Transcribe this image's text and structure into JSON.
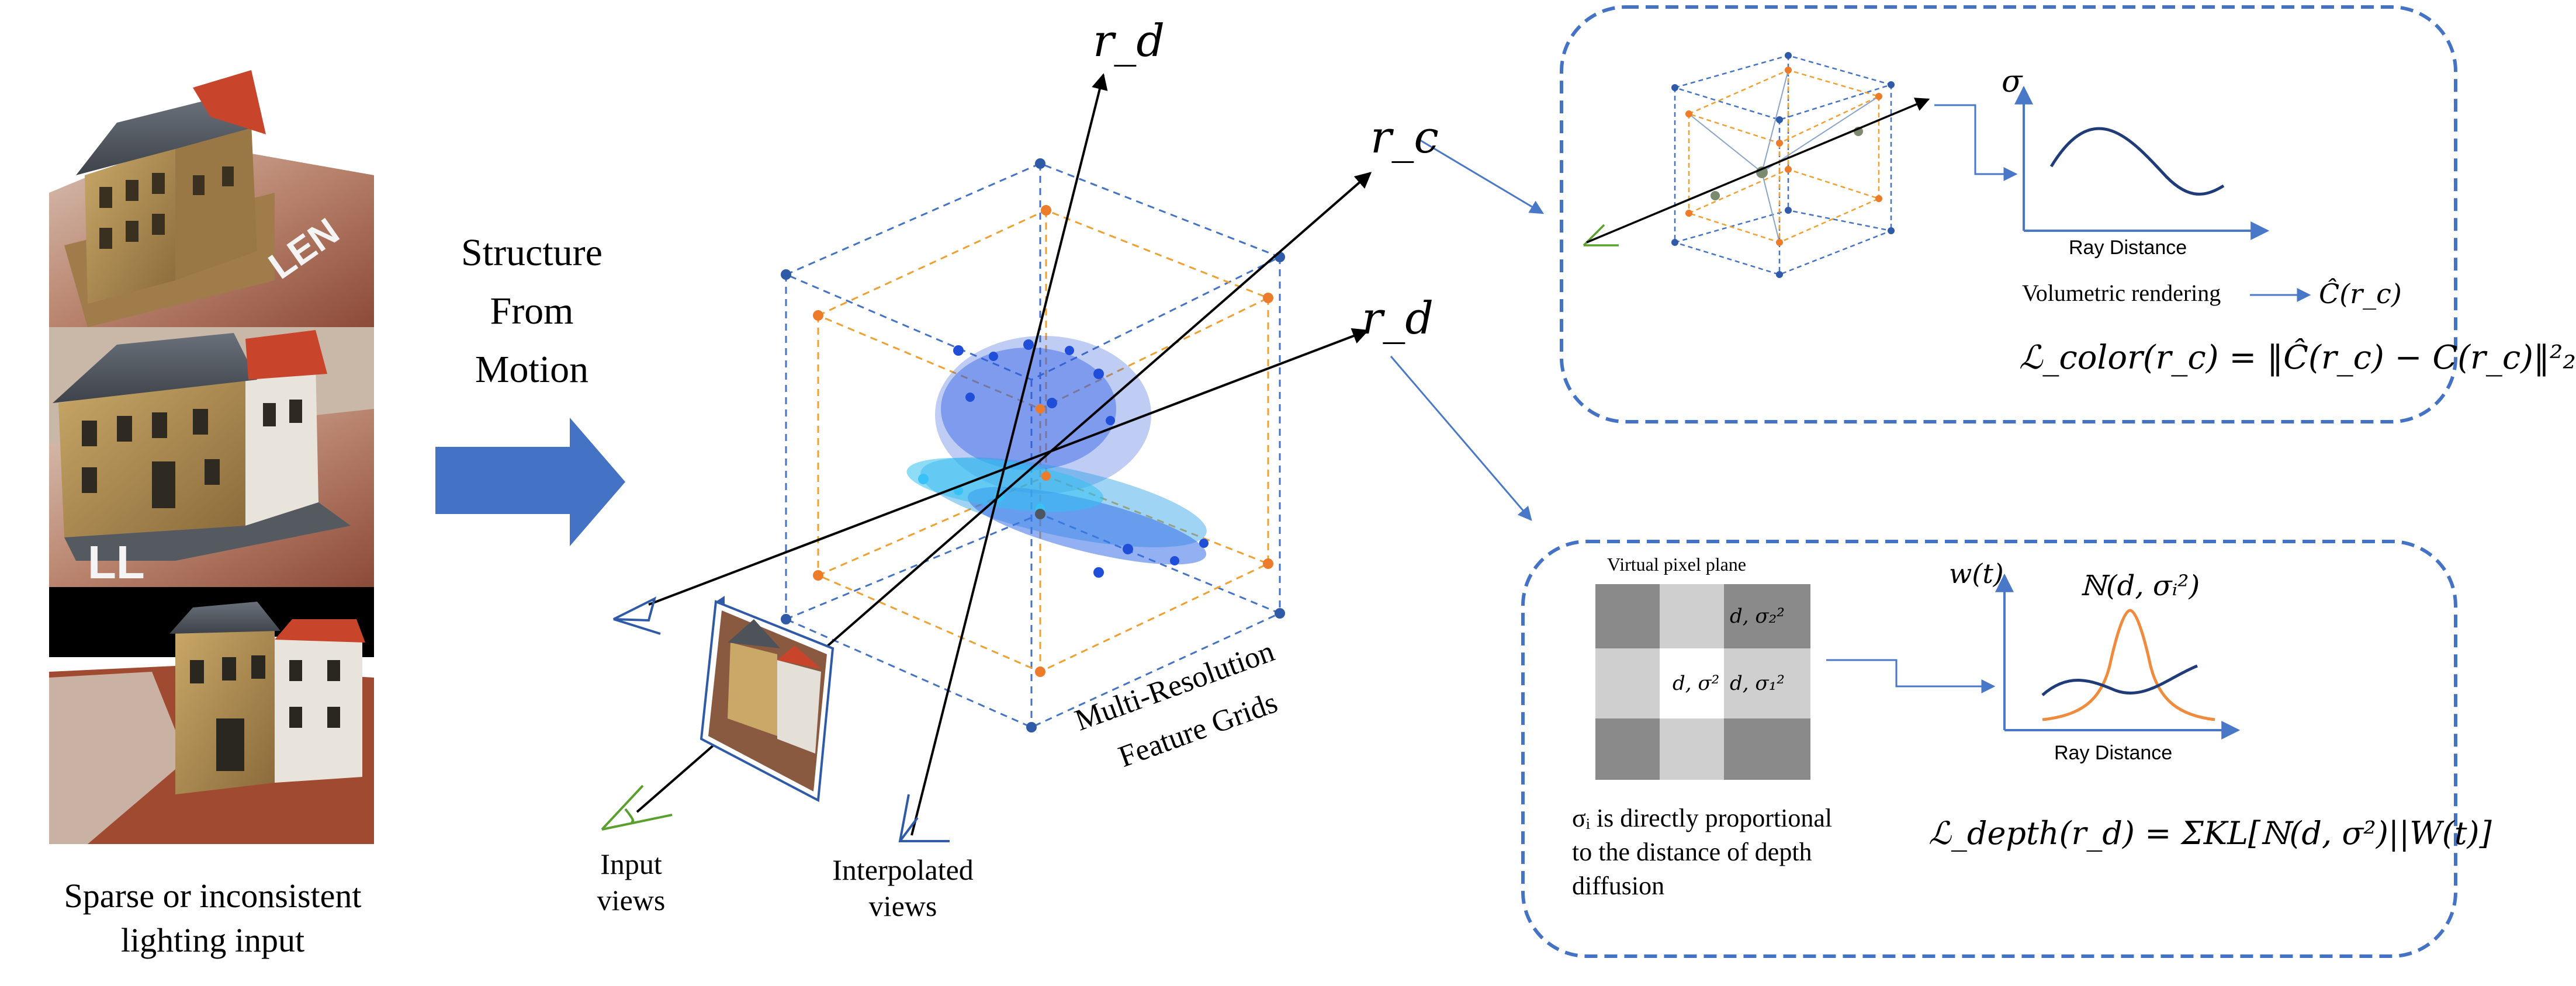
{
  "left_panel": {
    "caption_line1": "Sparse or inconsistent",
    "caption_line2": "lighting input"
  },
  "sfm": {
    "line1": "Structure",
    "line2": "From",
    "line3": "Motion"
  },
  "center": {
    "ray_top_label": "r_d",
    "ray_c_label": "r_c",
    "ray_d_label": "r_d",
    "grid_label_line1": "Multi-Resolution",
    "grid_label_line2": "Feature Grids",
    "input_views_line1": "Input",
    "input_views_line2": "views",
    "interp_views_line1": "Interpolated",
    "interp_views_line2": "views"
  },
  "color_box": {
    "sigma_axis": "σ",
    "x_axis": "Ray Distance",
    "volumetric": "Volumetric rendering",
    "output": "Ĉ(r_c)",
    "loss": "ℒ_color(r_c) = ‖Ĉ(r_c) − C(r_c)‖²₂"
  },
  "depth_box": {
    "plane_title": "Virtual pixel plane",
    "cell_d_sigma": "d, σ²",
    "cell_d_sigma1": "d, σ₁²",
    "cell_d_sigma2": "d, σ₂²",
    "w_axis": "w(t)",
    "gauss_label": "ℕ(d, σᵢ²)",
    "x_axis": "Ray Distance",
    "note_line1": "σᵢ is directly proportional",
    "note_line2": "to the distance of depth",
    "note_line3": "diffusion",
    "loss": "ℒ_depth(r_d) = ΣKL[ℕ(d, σ²)||W(t)]"
  },
  "colors": {
    "blue_dash": "#4472c4",
    "orange_dash": "#f0a030",
    "arrow_blue": "#4a78c8",
    "green_eye": "#5aa02c"
  }
}
